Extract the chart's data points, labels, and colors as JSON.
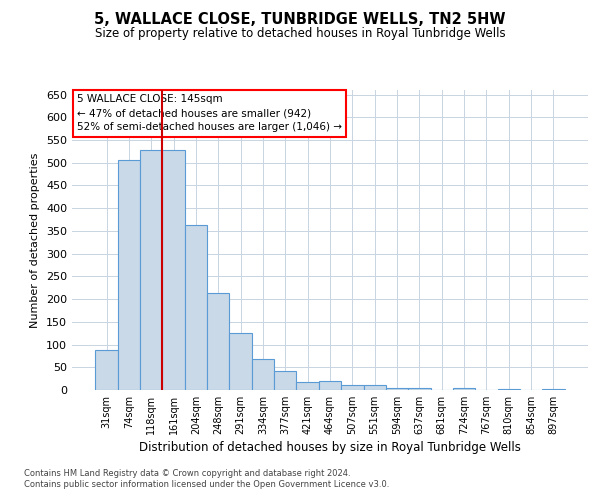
{
  "title": "5, WALLACE CLOSE, TUNBRIDGE WELLS, TN2 5HW",
  "subtitle": "Size of property relative to detached houses in Royal Tunbridge Wells",
  "xlabel": "Distribution of detached houses by size in Royal Tunbridge Wells",
  "ylabel": "Number of detached properties",
  "footnote1": "Contains HM Land Registry data © Crown copyright and database right 2024.",
  "footnote2": "Contains public sector information licensed under the Open Government Licence v3.0.",
  "annotation_line1": "5 WALLACE CLOSE: 145sqm",
  "annotation_line2": "← 47% of detached houses are smaller (942)",
  "annotation_line3": "52% of semi-detached houses are larger (1,046) →",
  "bar_color": "#c9d9e8",
  "bar_edge_color": "#5b9bd5",
  "vline_color": "#cc0000",
  "background_color": "#ffffff",
  "grid_color": "#c8d4e0",
  "categories": [
    "31sqm",
    "74sqm",
    "118sqm",
    "161sqm",
    "204sqm",
    "248sqm",
    "291sqm",
    "334sqm",
    "377sqm",
    "421sqm",
    "464sqm",
    "507sqm",
    "551sqm",
    "594sqm",
    "637sqm",
    "681sqm",
    "724sqm",
    "767sqm",
    "810sqm",
    "854sqm",
    "897sqm"
  ],
  "values": [
    88,
    507,
    528,
    528,
    362,
    214,
    125,
    68,
    42,
    17,
    20,
    11,
    11,
    5,
    4,
    0,
    4,
    0,
    3,
    0,
    3
  ],
  "vline_x": 2.5,
  "ylim": [
    0,
    660
  ],
  "yticks": [
    0,
    50,
    100,
    150,
    200,
    250,
    300,
    350,
    400,
    450,
    500,
    550,
    600,
    650
  ]
}
